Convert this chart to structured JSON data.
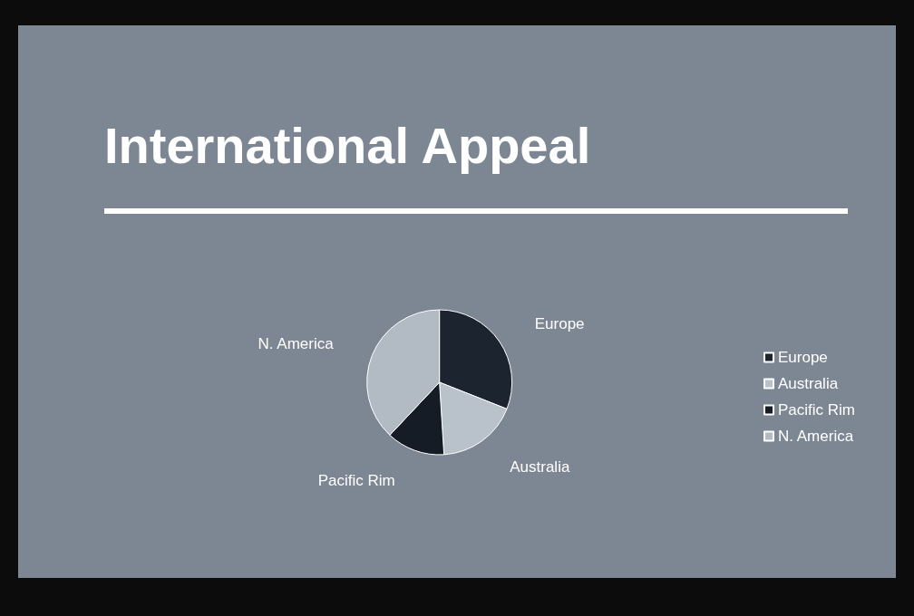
{
  "chart_data": {
    "type": "pie",
    "title": "International Appeal",
    "categories": [
      "Europe",
      "Australia",
      "Pacific Rim",
      "N. America"
    ],
    "values": [
      31,
      18,
      13,
      38
    ],
    "colors": [
      "#1c2430",
      "#b9c1ca",
      "#161c26",
      "#b2bac4"
    ],
    "legend": "right"
  }
}
